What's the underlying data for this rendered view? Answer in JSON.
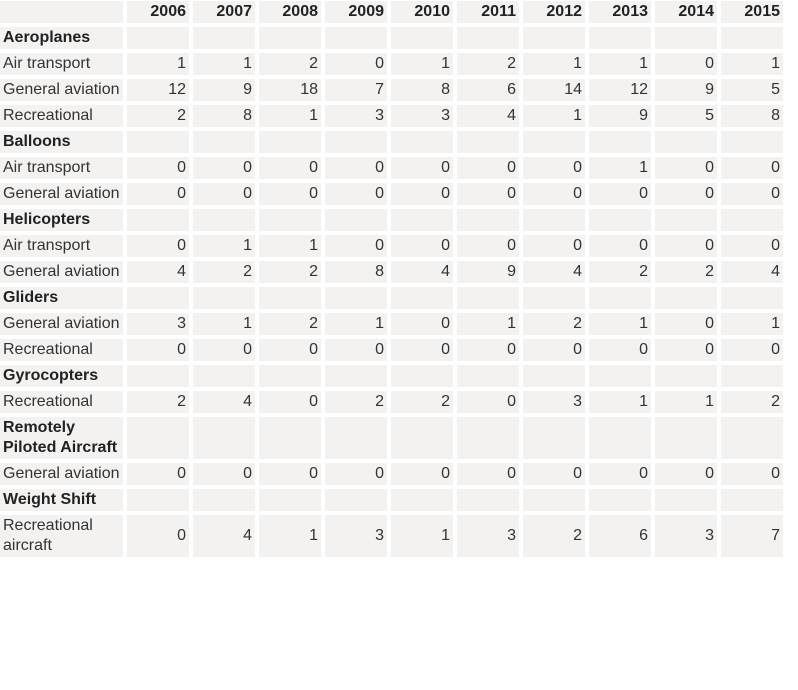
{
  "table": {
    "columns": [
      "2006",
      "2007",
      "2008",
      "2009",
      "2010",
      "2011",
      "2012",
      "2013",
      "2014",
      "2015"
    ],
    "rows": [
      [
        "Aeroplanes"
      ],
      [
        "Air transport",
        1,
        1,
        2,
        0,
        1,
        2,
        1,
        1,
        0,
        1
      ],
      [
        "General aviation",
        12,
        9,
        18,
        7,
        8,
        6,
        14,
        12,
        9,
        5
      ],
      [
        "Recreational",
        2,
        8,
        1,
        3,
        3,
        4,
        1,
        9,
        5,
        8
      ],
      [
        "Balloons"
      ],
      [
        "Air transport",
        0,
        0,
        0,
        0,
        0,
        0,
        0,
        1,
        0,
        0
      ],
      [
        "General aviation",
        0,
        0,
        0,
        0,
        0,
        0,
        0,
        0,
        0,
        0
      ],
      [
        "Helicopters"
      ],
      [
        "Air transport",
        0,
        1,
        1,
        0,
        0,
        0,
        0,
        0,
        0,
        0
      ],
      [
        "General aviation",
        4,
        2,
        2,
        8,
        4,
        9,
        4,
        2,
        2,
        4
      ],
      [
        "Gliders"
      ],
      [
        "General aviation",
        3,
        1,
        2,
        1,
        0,
        1,
        2,
        1,
        0,
        1
      ],
      [
        "Recreational",
        0,
        0,
        0,
        0,
        0,
        0,
        0,
        0,
        0,
        0
      ],
      [
        "Gyrocopters"
      ],
      [
        "Recreational",
        2,
        4,
        0,
        2,
        2,
        0,
        3,
        1,
        1,
        2
      ],
      [
        "Remotely Piloted Aircraft"
      ],
      [
        "General aviation",
        0,
        0,
        0,
        0,
        0,
        0,
        0,
        0,
        0,
        0
      ],
      [
        "Weight Shift"
      ],
      [
        "Recreational aircraft",
        0,
        4,
        1,
        3,
        1,
        3,
        2,
        6,
        3,
        7
      ]
    ]
  }
}
